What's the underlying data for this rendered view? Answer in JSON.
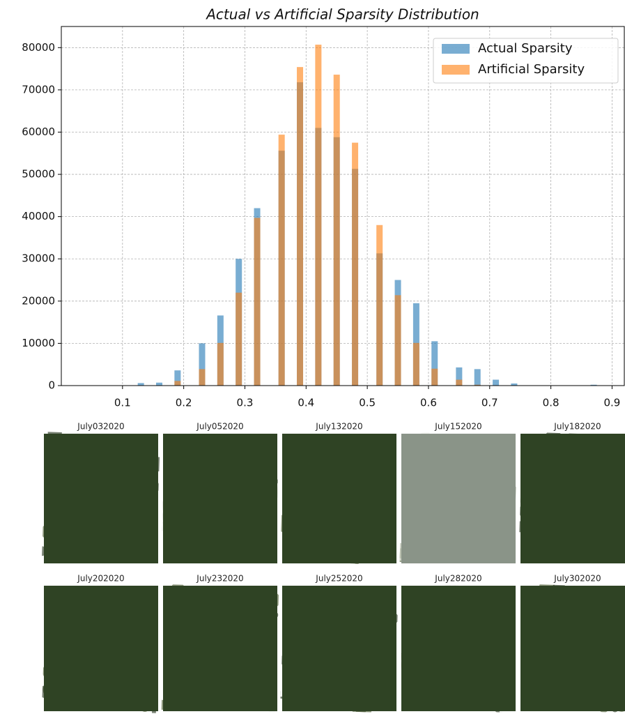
{
  "chart_data": {
    "type": "bar",
    "title": "Actual vs Artificial Sparsity Distribution",
    "x": [
      0.13,
      0.16,
      0.19,
      0.23,
      0.26,
      0.29,
      0.32,
      0.36,
      0.39,
      0.42,
      0.45,
      0.48,
      0.52,
      0.55,
      0.58,
      0.61,
      0.65,
      0.68,
      0.71,
      0.74,
      0.87
    ],
    "series": [
      {
        "name": "Actual Sparsity",
        "color": "#1f77b4",
        "values": [
          600,
          700,
          3600,
          10000,
          16600,
          30000,
          42000,
          55600,
          71800,
          61000,
          58800,
          51300,
          31300,
          25000,
          19500,
          10500,
          4300,
          3900,
          1400,
          500,
          200
        ]
      },
      {
        "name": "Artificial Sparsity",
        "color": "#ff7f0e",
        "values": [
          0,
          0,
          1100,
          3900,
          10100,
          22000,
          39700,
          59400,
          75400,
          80700,
          73600,
          57500,
          38000,
          21400,
          10100,
          4000,
          1400,
          200,
          0,
          0,
          0
        ]
      }
    ],
    "xlim": [
      0.0,
      0.92
    ],
    "xticks": [
      0.1,
      0.2,
      0.3,
      0.4,
      0.5,
      0.6,
      0.7,
      0.8,
      0.9
    ],
    "ylim": [
      0,
      85000
    ],
    "yticks": [
      0,
      10000,
      20000,
      30000,
      40000,
      50000,
      60000,
      70000,
      80000
    ],
    "grid": true,
    "legend": "upper right"
  },
  "images": [
    {
      "label": "July032020"
    },
    {
      "label": "July052020"
    },
    {
      "label": "July132020"
    },
    {
      "label": "July152020"
    },
    {
      "label": "July182020"
    },
    {
      "label": "July202020"
    },
    {
      "label": "July232020"
    },
    {
      "label": "July252020"
    },
    {
      "label": "July282020"
    },
    {
      "label": "July302020"
    }
  ]
}
